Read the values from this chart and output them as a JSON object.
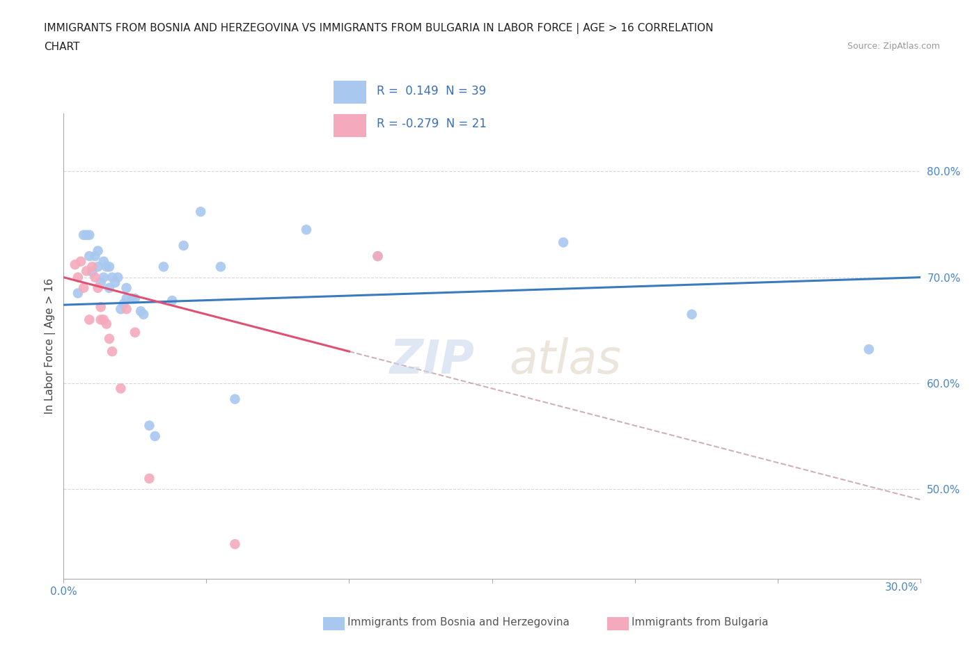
{
  "title_line1": "IMMIGRANTS FROM BOSNIA AND HERZEGOVINA VS IMMIGRANTS FROM BULGARIA IN LABOR FORCE | AGE > 16 CORRELATION",
  "title_line2": "CHART",
  "source": "Source: ZipAtlas.com",
  "ylabel": "In Labor Force | Age > 16",
  "xlim": [
    0.0,
    0.3
  ],
  "ylim": [
    0.415,
    0.855
  ],
  "xticks": [
    0.0,
    0.05,
    0.1,
    0.15,
    0.2,
    0.25,
    0.3
  ],
  "ytick_vals": [
    0.5,
    0.6,
    0.7,
    0.8
  ],
  "bosnia_R": 0.149,
  "bosnia_N": 39,
  "bulgaria_R": -0.279,
  "bulgaria_N": 21,
  "bosnia_color": "#a8c8f0",
  "bulgaria_color": "#f4aabc",
  "trend_bosnia_color": "#3a7abf",
  "trend_bulgaria_color": "#e05070",
  "trend_dashed_color": "#d0b0b8",
  "bosnia_scatter_x": [
    0.005,
    0.007,
    0.008,
    0.009,
    0.009,
    0.01,
    0.011,
    0.012,
    0.012,
    0.013,
    0.014,
    0.014,
    0.015,
    0.016,
    0.016,
    0.017,
    0.018,
    0.019,
    0.02,
    0.021,
    0.022,
    0.022,
    0.024,
    0.025,
    0.027,
    0.028,
    0.03,
    0.032,
    0.035,
    0.038,
    0.042,
    0.048,
    0.055,
    0.06,
    0.085,
    0.11,
    0.175,
    0.22,
    0.282
  ],
  "bosnia_scatter_y": [
    0.685,
    0.74,
    0.74,
    0.72,
    0.74,
    0.705,
    0.72,
    0.71,
    0.725,
    0.695,
    0.7,
    0.715,
    0.71,
    0.69,
    0.71,
    0.7,
    0.695,
    0.7,
    0.67,
    0.675,
    0.69,
    0.68,
    0.68,
    0.68,
    0.668,
    0.665,
    0.56,
    0.55,
    0.71,
    0.678,
    0.73,
    0.762,
    0.71,
    0.585,
    0.745,
    0.72,
    0.733,
    0.665,
    0.632
  ],
  "bulgaria_scatter_x": [
    0.004,
    0.005,
    0.006,
    0.007,
    0.008,
    0.009,
    0.01,
    0.011,
    0.012,
    0.013,
    0.013,
    0.014,
    0.015,
    0.016,
    0.017,
    0.02,
    0.022,
    0.025,
    0.03,
    0.06,
    0.11
  ],
  "bulgaria_scatter_y": [
    0.712,
    0.7,
    0.715,
    0.69,
    0.706,
    0.66,
    0.71,
    0.7,
    0.69,
    0.66,
    0.672,
    0.66,
    0.656,
    0.642,
    0.63,
    0.595,
    0.67,
    0.648,
    0.51,
    0.448,
    0.72
  ],
  "bosnia_trendline_x": [
    0.0,
    0.3
  ],
  "bosnia_trendline_y": [
    0.674,
    0.7
  ],
  "bulgaria_trendline_x": [
    0.0,
    0.1
  ],
  "bulgaria_trendline_y": [
    0.7,
    0.63
  ],
  "dashed_trendline_x": [
    0.1,
    0.3
  ],
  "dashed_trendline_y": [
    0.63,
    0.49
  ]
}
